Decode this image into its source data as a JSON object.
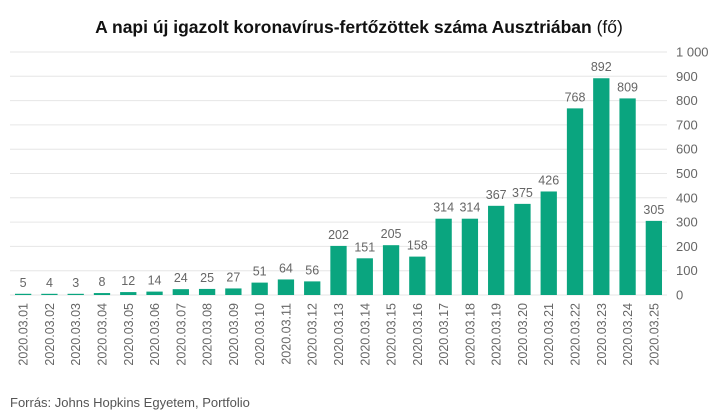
{
  "title": "A napi új igazolt koronavírus-fertőzöttek száma Ausztriában",
  "title_unit": "(fő)",
  "source": "Forrás: Johns Hopkins Egyetem, Portfolio",
  "colors": {
    "bar": "#0aa57f",
    "grid": "#e6e6e6",
    "axis_text": "#666666",
    "label_text": "#666666"
  },
  "chart_data": {
    "type": "bar",
    "title": "A napi új igazolt koronavírus-fertőzöttek száma Ausztriában (fő)",
    "xlabel": "",
    "ylabel": "",
    "ylim": [
      0,
      1000
    ],
    "y_ticks": [
      0,
      100,
      200,
      300,
      400,
      500,
      600,
      700,
      800,
      900,
      1000
    ],
    "y_tick_labels": [
      "0",
      "100",
      "200",
      "300",
      "400",
      "500",
      "600",
      "700",
      "800",
      "900",
      "1 000"
    ],
    "y_axis_position": "right",
    "grid": true,
    "legend": "none",
    "categories": [
      "2020.03.01",
      "2020.03.02",
      "2020.03.03",
      "2020.03.04",
      "2020.03.05",
      "2020.03.06",
      "2020.03.07",
      "2020.03.08",
      "2020.03.09",
      "2020.03.10",
      "2020.03.11",
      "2020.03.12",
      "2020.03.13",
      "2020.03.14",
      "2020.03.15",
      "2020.03.16",
      "2020.03.17",
      "2020.03.18",
      "2020.03.19",
      "2020.03.20",
      "2020.03.21",
      "2020.03.22",
      "2020.03.23",
      "2020.03.24",
      "2020.03.25"
    ],
    "values": [
      5,
      4,
      3,
      8,
      12,
      14,
      24,
      25,
      27,
      51,
      64,
      56,
      202,
      151,
      205,
      158,
      314,
      314,
      367,
      375,
      426,
      768,
      892,
      809,
      305
    ],
    "data_labels": true
  }
}
